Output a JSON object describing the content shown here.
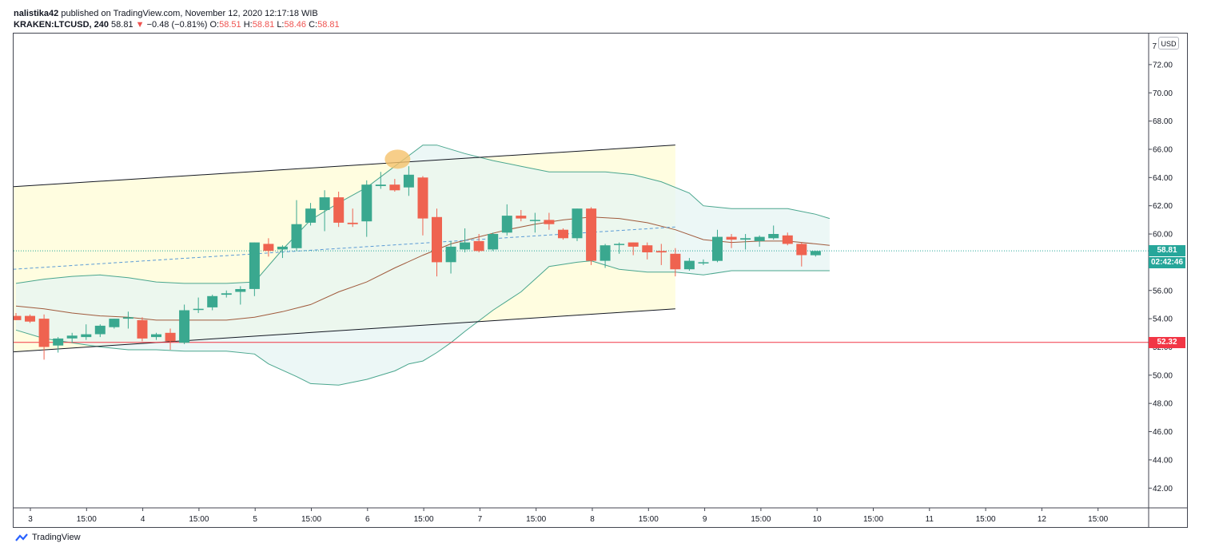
{
  "header": {
    "author": "nalistika42",
    "published_text": "published on TradingView.com, November 12, 2020 12:17:18 WIB",
    "symbol": "KRAKEN:LTCUSD, 240",
    "last": "58.81",
    "change_arrow": "▼",
    "change": "−0.48 (−0.81%)",
    "o_label": "O:",
    "o_value": "58.51",
    "h_label": "H:",
    "h_value": "58.81",
    "l_label": "L:",
    "l_value": "58.46",
    "c_label": "C:",
    "c_value": "58.81"
  },
  "currency_button": "USD",
  "price_tags": {
    "last_price": "58.81",
    "countdown": "02:42:46",
    "support_level": "52.32"
  },
  "footer": {
    "brand": "TradingView"
  },
  "colors": {
    "up": "#3aa88f",
    "down": "#ef6350",
    "bb_band": "#4aa68e",
    "bb_basis": "#a05a3c",
    "support": "#f23645",
    "channel_fill": "#fffde0",
    "bb_fill": "#e6f4f3",
    "highlight": "#f5c26b",
    "dashed_midline": "#5b9bd5"
  },
  "chart_data": {
    "type": "candlestick",
    "timeframe": "240",
    "ylim": [
      40.6,
      74.2
    ],
    "y_ticks": [
      "72.00",
      "70.00",
      "68.00",
      "66.00",
      "64.00",
      "62.00",
      "60.00",
      "58.00",
      "56.00",
      "54.00",
      "52.00",
      "50.00",
      "48.00",
      "46.00",
      "44.00",
      "42.00"
    ],
    "y_top_tick_partial": "7",
    "x_ticks": [
      "3",
      "15:00",
      "4",
      "15:00",
      "5",
      "15:00",
      "6",
      "15:00",
      "7",
      "15:00",
      "8",
      "15:00",
      "9",
      "15:00",
      "10",
      "15:00",
      "11",
      "15:00",
      "12",
      "15:00"
    ],
    "candles": [
      {
        "o": 54.2,
        "h": 54.4,
        "l": 53.9,
        "c": 53.9
      },
      {
        "o": 54.2,
        "h": 54.3,
        "l": 53.7,
        "c": 53.8
      },
      {
        "o": 54.0,
        "h": 54.3,
        "l": 51.1,
        "c": 52.0
      },
      {
        "o": 52.1,
        "h": 52.7,
        "l": 51.6,
        "c": 52.6
      },
      {
        "o": 52.6,
        "h": 53.0,
        "l": 52.3,
        "c": 52.8
      },
      {
        "o": 52.7,
        "h": 53.6,
        "l": 52.5,
        "c": 52.9
      },
      {
        "o": 52.9,
        "h": 53.6,
        "l": 52.7,
        "c": 53.5
      },
      {
        "o": 53.4,
        "h": 54.0,
        "l": 53.3,
        "c": 54.0
      },
      {
        "o": 54.0,
        "h": 54.5,
        "l": 53.3,
        "c": 54.1
      },
      {
        "o": 53.9,
        "h": 54.1,
        "l": 52.4,
        "c": 52.6
      },
      {
        "o": 52.7,
        "h": 53.0,
        "l": 52.5,
        "c": 52.9
      },
      {
        "o": 53.0,
        "h": 53.3,
        "l": 51.8,
        "c": 52.4
      },
      {
        "o": 52.3,
        "h": 55.0,
        "l": 52.2,
        "c": 54.6
      },
      {
        "o": 54.7,
        "h": 55.5,
        "l": 54.4,
        "c": 54.7
      },
      {
        "o": 54.8,
        "h": 55.7,
        "l": 54.6,
        "c": 55.6
      },
      {
        "o": 55.7,
        "h": 56.0,
        "l": 55.5,
        "c": 55.8
      },
      {
        "o": 55.9,
        "h": 56.3,
        "l": 55.0,
        "c": 56.1
      },
      {
        "o": 56.1,
        "h": 59.4,
        "l": 55.6,
        "c": 59.4
      },
      {
        "o": 59.3,
        "h": 59.7,
        "l": 58.4,
        "c": 58.8
      },
      {
        "o": 58.9,
        "h": 59.2,
        "l": 58.3,
        "c": 59.1
      },
      {
        "o": 59.0,
        "h": 62.4,
        "l": 58.8,
        "c": 60.7
      },
      {
        "o": 60.8,
        "h": 62.2,
        "l": 60.6,
        "c": 61.8
      },
      {
        "o": 61.7,
        "h": 63.1,
        "l": 60.2,
        "c": 62.6
      },
      {
        "o": 62.6,
        "h": 63.0,
        "l": 60.5,
        "c": 60.8
      },
      {
        "o": 60.8,
        "h": 61.8,
        "l": 60.5,
        "c": 60.7
      },
      {
        "o": 60.9,
        "h": 63.8,
        "l": 59.8,
        "c": 63.5
      },
      {
        "o": 63.4,
        "h": 64.4,
        "l": 63.2,
        "c": 63.5
      },
      {
        "o": 63.5,
        "h": 63.9,
        "l": 63.0,
        "c": 63.1
      },
      {
        "o": 63.3,
        "h": 64.8,
        "l": 62.7,
        "c": 64.2
      },
      {
        "o": 64.0,
        "h": 64.1,
        "l": 59.9,
        "c": 61.1
      },
      {
        "o": 61.2,
        "h": 61.8,
        "l": 57.0,
        "c": 58.0
      },
      {
        "o": 58.0,
        "h": 59.5,
        "l": 57.2,
        "c": 59.1
      },
      {
        "o": 58.9,
        "h": 60.4,
        "l": 58.7,
        "c": 59.4
      },
      {
        "o": 59.5,
        "h": 60.0,
        "l": 58.7,
        "c": 58.8
      },
      {
        "o": 58.9,
        "h": 60.1,
        "l": 58.8,
        "c": 60.0
      },
      {
        "o": 60.1,
        "h": 62.1,
        "l": 59.9,
        "c": 61.3
      },
      {
        "o": 61.3,
        "h": 61.7,
        "l": 60.9,
        "c": 61.1
      },
      {
        "o": 61.0,
        "h": 61.5,
        "l": 60.1,
        "c": 61.0
      },
      {
        "o": 61.0,
        "h": 61.5,
        "l": 60.3,
        "c": 60.7
      },
      {
        "o": 60.3,
        "h": 60.4,
        "l": 59.6,
        "c": 59.7
      },
      {
        "o": 59.7,
        "h": 61.8,
        "l": 59.5,
        "c": 61.8
      },
      {
        "o": 61.8,
        "h": 61.9,
        "l": 57.8,
        "c": 58.1
      },
      {
        "o": 58.1,
        "h": 59.3,
        "l": 57.6,
        "c": 59.2
      },
      {
        "o": 59.3,
        "h": 59.4,
        "l": 58.6,
        "c": 59.3
      },
      {
        "o": 59.4,
        "h": 59.4,
        "l": 58.5,
        "c": 59.1
      },
      {
        "o": 59.2,
        "h": 59.4,
        "l": 58.2,
        "c": 58.7
      },
      {
        "o": 58.8,
        "h": 59.3,
        "l": 57.8,
        "c": 58.7
      },
      {
        "o": 58.6,
        "h": 59.0,
        "l": 57.0,
        "c": 57.5
      },
      {
        "o": 57.5,
        "h": 58.3,
        "l": 57.4,
        "c": 58.1
      },
      {
        "o": 58.0,
        "h": 58.2,
        "l": 57.8,
        "c": 58.0
      },
      {
        "o": 58.1,
        "h": 60.3,
        "l": 58.0,
        "c": 59.8
      },
      {
        "o": 59.8,
        "h": 60.0,
        "l": 59.0,
        "c": 59.6
      },
      {
        "o": 59.6,
        "h": 60.0,
        "l": 58.9,
        "c": 59.7
      },
      {
        "o": 59.5,
        "h": 59.9,
        "l": 59.1,
        "c": 59.8
      },
      {
        "o": 59.7,
        "h": 60.6,
        "l": 59.6,
        "c": 60.0
      },
      {
        "o": 59.9,
        "h": 60.1,
        "l": 59.2,
        "c": 59.3
      },
      {
        "o": 59.3,
        "h": 59.4,
        "l": 57.7,
        "c": 58.5
      },
      {
        "o": 58.5,
        "h": 58.8,
        "l": 58.4,
        "c": 58.8
      }
    ],
    "bollinger": {
      "upper": [
        [
          0,
          56.5
        ],
        [
          2,
          56.8
        ],
        [
          4,
          57.0
        ],
        [
          6,
          57.1
        ],
        [
          8,
          56.9
        ],
        [
          10,
          56.6
        ],
        [
          12,
          56.5
        ],
        [
          15,
          56.5
        ],
        [
          17,
          56.6
        ],
        [
          19,
          58.9
        ],
        [
          21,
          61.0
        ],
        [
          23,
          62.2
        ],
        [
          25,
          63.3
        ],
        [
          27,
          64.8
        ],
        [
          29,
          66.3
        ],
        [
          30,
          66.3
        ],
        [
          32,
          65.7
        ],
        [
          34,
          65.2
        ],
        [
          36,
          64.8
        ],
        [
          38,
          64.4
        ],
        [
          40,
          64.4
        ],
        [
          42,
          64.4
        ],
        [
          44,
          64.2
        ],
        [
          46,
          63.7
        ],
        [
          48,
          62.9
        ],
        [
          49,
          62.0
        ],
        [
          51,
          61.8
        ],
        [
          53,
          61.8
        ],
        [
          55,
          61.8
        ],
        [
          57,
          61.4
        ],
        [
          58,
          61.1
        ]
      ],
      "basis": [
        [
          0,
          54.9
        ],
        [
          2,
          54.7
        ],
        [
          4,
          54.4
        ],
        [
          6,
          54.2
        ],
        [
          8,
          54.1
        ],
        [
          10,
          53.9
        ],
        [
          12,
          53.9
        ],
        [
          15,
          53.9
        ],
        [
          17,
          54.1
        ],
        [
          19,
          54.5
        ],
        [
          21,
          55.0
        ],
        [
          23,
          55.9
        ],
        [
          25,
          56.6
        ],
        [
          27,
          57.6
        ],
        [
          29,
          58.5
        ],
        [
          31,
          59.3
        ],
        [
          33,
          59.8
        ],
        [
          35,
          60.3
        ],
        [
          37,
          60.7
        ],
        [
          39,
          61.0
        ],
        [
          41,
          61.2
        ],
        [
          43,
          61.1
        ],
        [
          45,
          60.8
        ],
        [
          47,
          60.3
        ],
        [
          49,
          59.6
        ],
        [
          51,
          59.4
        ],
        [
          53,
          59.5
        ],
        [
          55,
          59.5
        ],
        [
          57,
          59.3
        ],
        [
          58,
          59.2
        ]
      ],
      "lower": [
        [
          0,
          53.2
        ],
        [
          2,
          52.6
        ],
        [
          4,
          52.3
        ],
        [
          6,
          52.0
        ],
        [
          8,
          51.8
        ],
        [
          10,
          51.8
        ],
        [
          12,
          51.7
        ],
        [
          15,
          51.7
        ],
        [
          17,
          51.5
        ],
        [
          18,
          50.8
        ],
        [
          20,
          49.9
        ],
        [
          21,
          49.4
        ],
        [
          23,
          49.3
        ],
        [
          25,
          49.7
        ],
        [
          27,
          50.3
        ],
        [
          28,
          50.8
        ],
        [
          29,
          51.0
        ],
        [
          30,
          51.6
        ],
        [
          31,
          52.3
        ],
        [
          32,
          53.1
        ],
        [
          34,
          54.6
        ],
        [
          36,
          55.9
        ],
        [
          37,
          56.8
        ],
        [
          38,
          57.7
        ],
        [
          40,
          58.0
        ],
        [
          41,
          58.1
        ],
        [
          43,
          57.5
        ],
        [
          45,
          57.3
        ],
        [
          47,
          57.3
        ],
        [
          49,
          57.1
        ],
        [
          51,
          57.4
        ],
        [
          53,
          57.4
        ],
        [
          55,
          57.4
        ],
        [
          58,
          57.4
        ]
      ]
    },
    "channel": {
      "upper_line": [
        [
          -1,
          63.3
        ],
        [
          47,
          66.3
        ]
      ],
      "lower_line": [
        [
          -1,
          51.6
        ],
        [
          47,
          54.7
        ]
      ],
      "dashed_midline": [
        [
          -1,
          57.45
        ],
        [
          47,
          60.5
        ]
      ]
    },
    "horizontal_lines": {
      "support": 52.32,
      "last_price": 58.81
    },
    "highlight": {
      "index": 27.2,
      "price": 65.3
    }
  }
}
